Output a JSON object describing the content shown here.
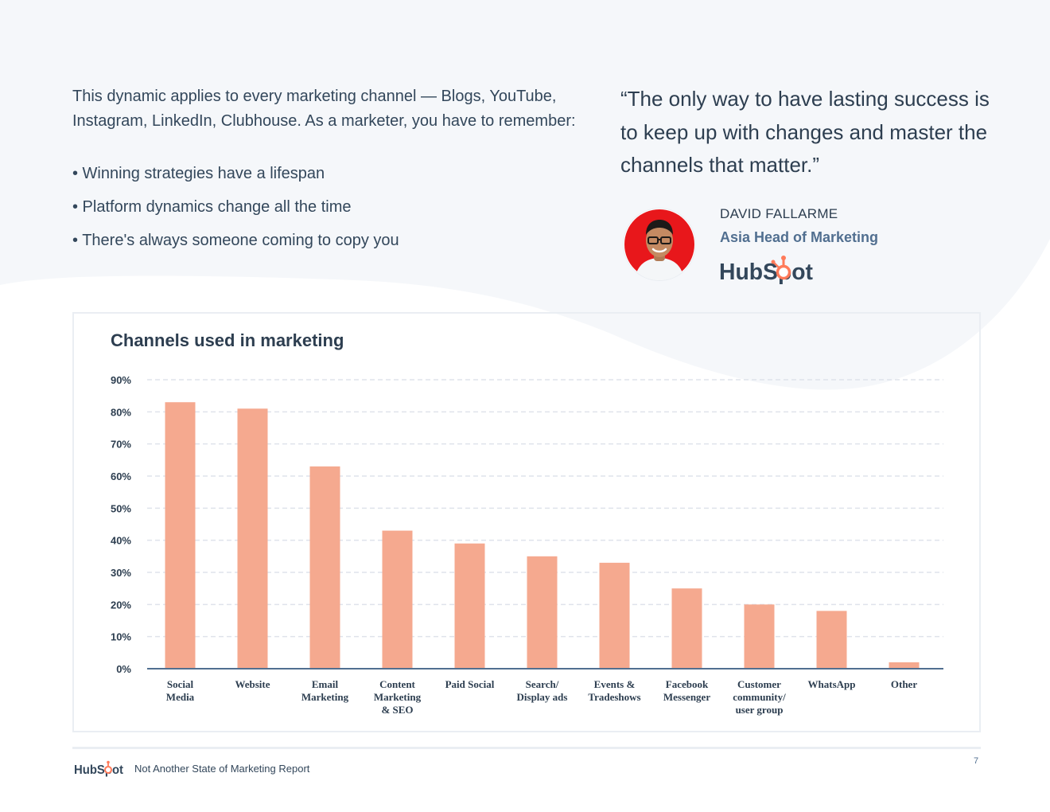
{
  "intro": {
    "text": "This dynamic applies to every marketing channel — Blogs, YouTube, Instagram, LinkedIn, Clubhouse. As a marketer, you have to remember:",
    "bullets": [
      "• Winning strategies have a lifespan",
      "• Platform dynamics change all the time",
      "• There's always someone coming to copy you"
    ]
  },
  "quote": {
    "text": "“The only way to have lasting success is to keep up with changes and master the channels that matter.”",
    "name": "DAVID FALLARME",
    "role": "Asia Head of Marketing",
    "company_logo": "HubSpot"
  },
  "footer": {
    "logo": "HubSpot",
    "report_title": "Not Another State of Marketing Report",
    "page_number": "7"
  },
  "colors": {
    "bar": "#f5a98f",
    "text_dark": "#2d3e50",
    "hubspot_orange": "#ff7a59",
    "accent_role": "#516f90",
    "background_wave": "#f5f7fa"
  },
  "chart_data": {
    "type": "bar",
    "title": "Channels used in marketing",
    "categories": [
      [
        "Social",
        "Media"
      ],
      [
        "Website"
      ],
      [
        "Email",
        "Marketing"
      ],
      [
        "Content",
        "Marketing",
        "& SEO"
      ],
      [
        "Paid Social"
      ],
      [
        "Search/",
        "Display ads"
      ],
      [
        "Events &",
        "Tradeshows"
      ],
      [
        "Facebook",
        "Messenger"
      ],
      [
        "Customer",
        "community/",
        "user group"
      ],
      [
        "WhatsApp"
      ],
      [
        "Other"
      ]
    ],
    "values": [
      83,
      81,
      63,
      43,
      39,
      35,
      33,
      25,
      20,
      18,
      2
    ],
    "ylim": [
      0,
      90
    ],
    "yticks": [
      "0%",
      "10%",
      "20%",
      "30%",
      "40%",
      "50%",
      "60%",
      "70%",
      "80%",
      "90%"
    ],
    "xlabel": "",
    "ylabel": "",
    "grid": true
  }
}
